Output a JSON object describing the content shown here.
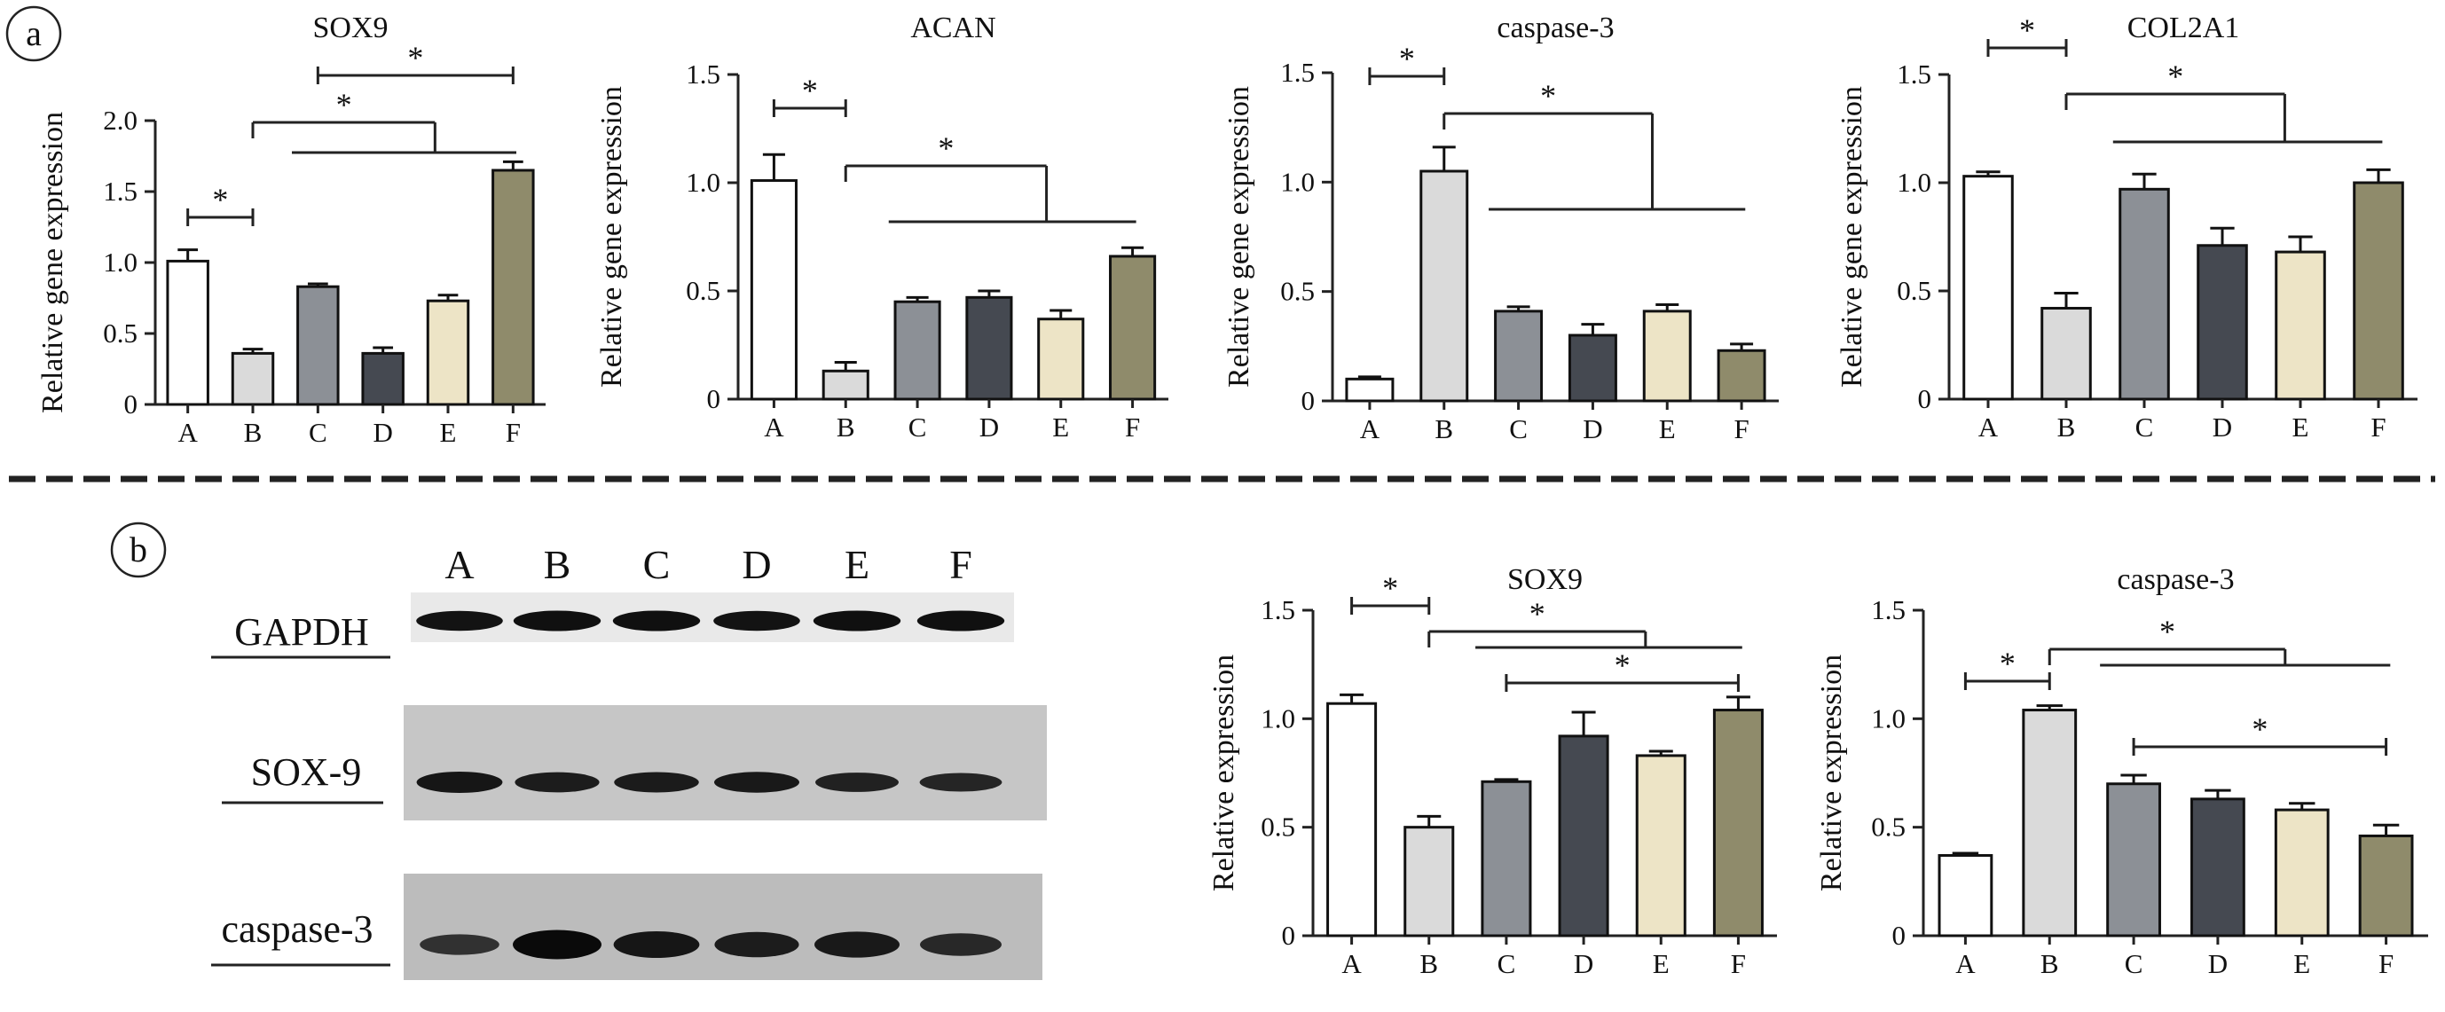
{
  "panel_labels": [
    "a",
    "b"
  ],
  "colors": {
    "A": "#ffffff",
    "B": "#dadada",
    "C": "#8c9096",
    "D": "#454951",
    "E": "#ede4c6",
    "F": "#8f8b6b",
    "axis": "#222222",
    "divider": "#222222"
  },
  "blot": {
    "lanes": [
      "A",
      "B",
      "C",
      "D",
      "E",
      "F"
    ],
    "rows": [
      {
        "label": "GAPDH",
        "intensity": [
          0.85,
          0.9,
          0.9,
          0.85,
          0.9,
          0.9
        ]
      },
      {
        "label": "SOX-9",
        "intensity": [
          0.8,
          0.7,
          0.72,
          0.75,
          0.62,
          0.55
        ]
      },
      {
        "label": "caspase-3",
        "intensity": [
          0.35,
          1.0,
          0.8,
          0.7,
          0.75,
          0.5
        ]
      }
    ]
  },
  "chart_data": [
    {
      "type": "bar",
      "title": "SOX9",
      "xlabel": "",
      "ylabel": "Relative gene expression",
      "categories": [
        "A",
        "B",
        "C",
        "D",
        "E",
        "F"
      ],
      "values": [
        1.01,
        0.36,
        0.83,
        0.36,
        0.73,
        1.65
      ],
      "errors": [
        0.08,
        0.03,
        0.02,
        0.04,
        0.04,
        0.06
      ],
      "ylim": [
        0,
        2.0
      ],
      "yticks": [
        "0",
        "0.5",
        "1.0",
        "1.5",
        "2.0"
      ],
      "significance": [
        {
          "label": "*",
          "from": "A",
          "to": "B"
        },
        {
          "label": "*",
          "from": "B",
          "to": [
            "C",
            "D",
            "E",
            "F"
          ]
        },
        {
          "label": "*",
          "from": "C",
          "to": "F"
        }
      ]
    },
    {
      "type": "bar",
      "title": "ACAN",
      "xlabel": "",
      "ylabel": "Relative gene expression",
      "categories": [
        "A",
        "B",
        "C",
        "D",
        "E",
        "F"
      ],
      "values": [
        1.01,
        0.13,
        0.45,
        0.47,
        0.37,
        0.66
      ],
      "errors": [
        0.12,
        0.04,
        0.02,
        0.03,
        0.04,
        0.04
      ],
      "ylim": [
        0,
        1.5
      ],
      "yticks": [
        "0",
        "0.5",
        "1.0",
        "1.5"
      ],
      "significance": [
        {
          "label": "*",
          "from": "A",
          "to": "B"
        },
        {
          "label": "*",
          "from": "B",
          "to": [
            "C",
            "D",
            "E",
            "F"
          ]
        }
      ]
    },
    {
      "type": "bar",
      "title": "caspase-3",
      "xlabel": "",
      "ylabel": "Relative gene expression",
      "categories": [
        "A",
        "B",
        "C",
        "D",
        "E",
        "F"
      ],
      "values": [
        0.1,
        1.05,
        0.41,
        0.3,
        0.41,
        0.23
      ],
      "errors": [
        0.01,
        0.11,
        0.02,
        0.05,
        0.03,
        0.03
      ],
      "ylim": [
        0,
        1.5
      ],
      "yticks": [
        "0",
        "0.5",
        "1.0",
        "1.5"
      ],
      "significance": [
        {
          "label": "*",
          "from": "A",
          "to": "B"
        },
        {
          "label": "*",
          "from": "B",
          "to": [
            "C",
            "D",
            "E",
            "F"
          ]
        }
      ]
    },
    {
      "type": "bar",
      "title": "COL2A1",
      "xlabel": "",
      "ylabel": "Relative gene expression",
      "categories": [
        "A",
        "B",
        "C",
        "D",
        "E",
        "F"
      ],
      "values": [
        1.03,
        0.42,
        0.97,
        0.71,
        0.68,
        1.0
      ],
      "errors": [
        0.02,
        0.07,
        0.07,
        0.08,
        0.07,
        0.06
      ],
      "ylim": [
        0,
        1.5
      ],
      "yticks": [
        "0",
        "0.5",
        "1.0",
        "1.5"
      ],
      "significance": [
        {
          "label": "*",
          "from": "A",
          "to": "B"
        },
        {
          "label": "*",
          "from": "B",
          "to": [
            "C",
            "D",
            "E",
            "F"
          ]
        }
      ]
    },
    {
      "type": "bar",
      "title": "SOX9",
      "xlabel": "",
      "ylabel": "Relative expression",
      "categories": [
        "A",
        "B",
        "C",
        "D",
        "E",
        "F"
      ],
      "values": [
        1.07,
        0.5,
        0.71,
        0.92,
        0.83,
        1.04
      ],
      "errors": [
        0.04,
        0.05,
        0.01,
        0.11,
        0.02,
        0.06
      ],
      "ylim": [
        0,
        1.5
      ],
      "yticks": [
        "0",
        "0.5",
        "1.0",
        "1.5"
      ],
      "significance": [
        {
          "label": "*",
          "from": "A",
          "to": "B"
        },
        {
          "label": "*",
          "from": "B",
          "to": [
            "C",
            "D",
            "E",
            "F"
          ]
        },
        {
          "label": "*",
          "from": "C",
          "to": "F"
        }
      ]
    },
    {
      "type": "bar",
      "title": "caspase-3",
      "xlabel": "",
      "ylabel": "Relative expression",
      "categories": [
        "A",
        "B",
        "C",
        "D",
        "E",
        "F"
      ],
      "values": [
        0.37,
        1.04,
        0.7,
        0.63,
        0.58,
        0.46
      ],
      "errors": [
        0.01,
        0.02,
        0.04,
        0.04,
        0.03,
        0.05
      ],
      "ylim": [
        0,
        1.5
      ],
      "yticks": [
        "0",
        "0.5",
        "1.0",
        "1.5"
      ],
      "significance": [
        {
          "label": "*",
          "from": "A",
          "to": "B"
        },
        {
          "label": "*",
          "from": "B",
          "to": [
            "C",
            "D",
            "E",
            "F"
          ]
        },
        {
          "label": "*",
          "from": "C",
          "to": "F"
        }
      ]
    }
  ]
}
